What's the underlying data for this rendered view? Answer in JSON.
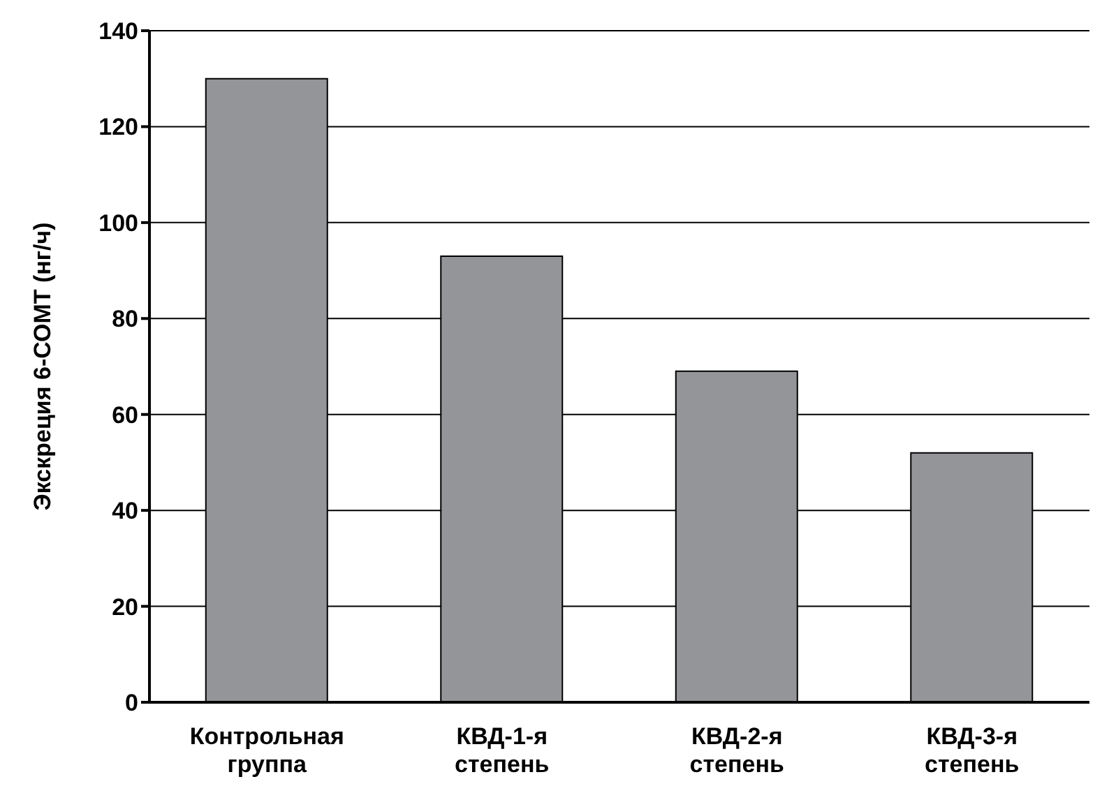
{
  "chart_data": {
    "type": "bar",
    "ylabel": "Экскреция 6-СОМТ (нг/ч)",
    "categories": [
      "Контрольная группа",
      "КВД-1-я степень",
      "КВД-2-я степень",
      "КВД-3-я степень"
    ],
    "values": [
      130,
      93,
      69,
      52
    ],
    "color": "#939598",
    "ylim": [
      0,
      140
    ],
    "yticks": [
      0,
      20,
      40,
      60,
      80,
      100,
      120,
      140
    ],
    "grid": "y"
  }
}
